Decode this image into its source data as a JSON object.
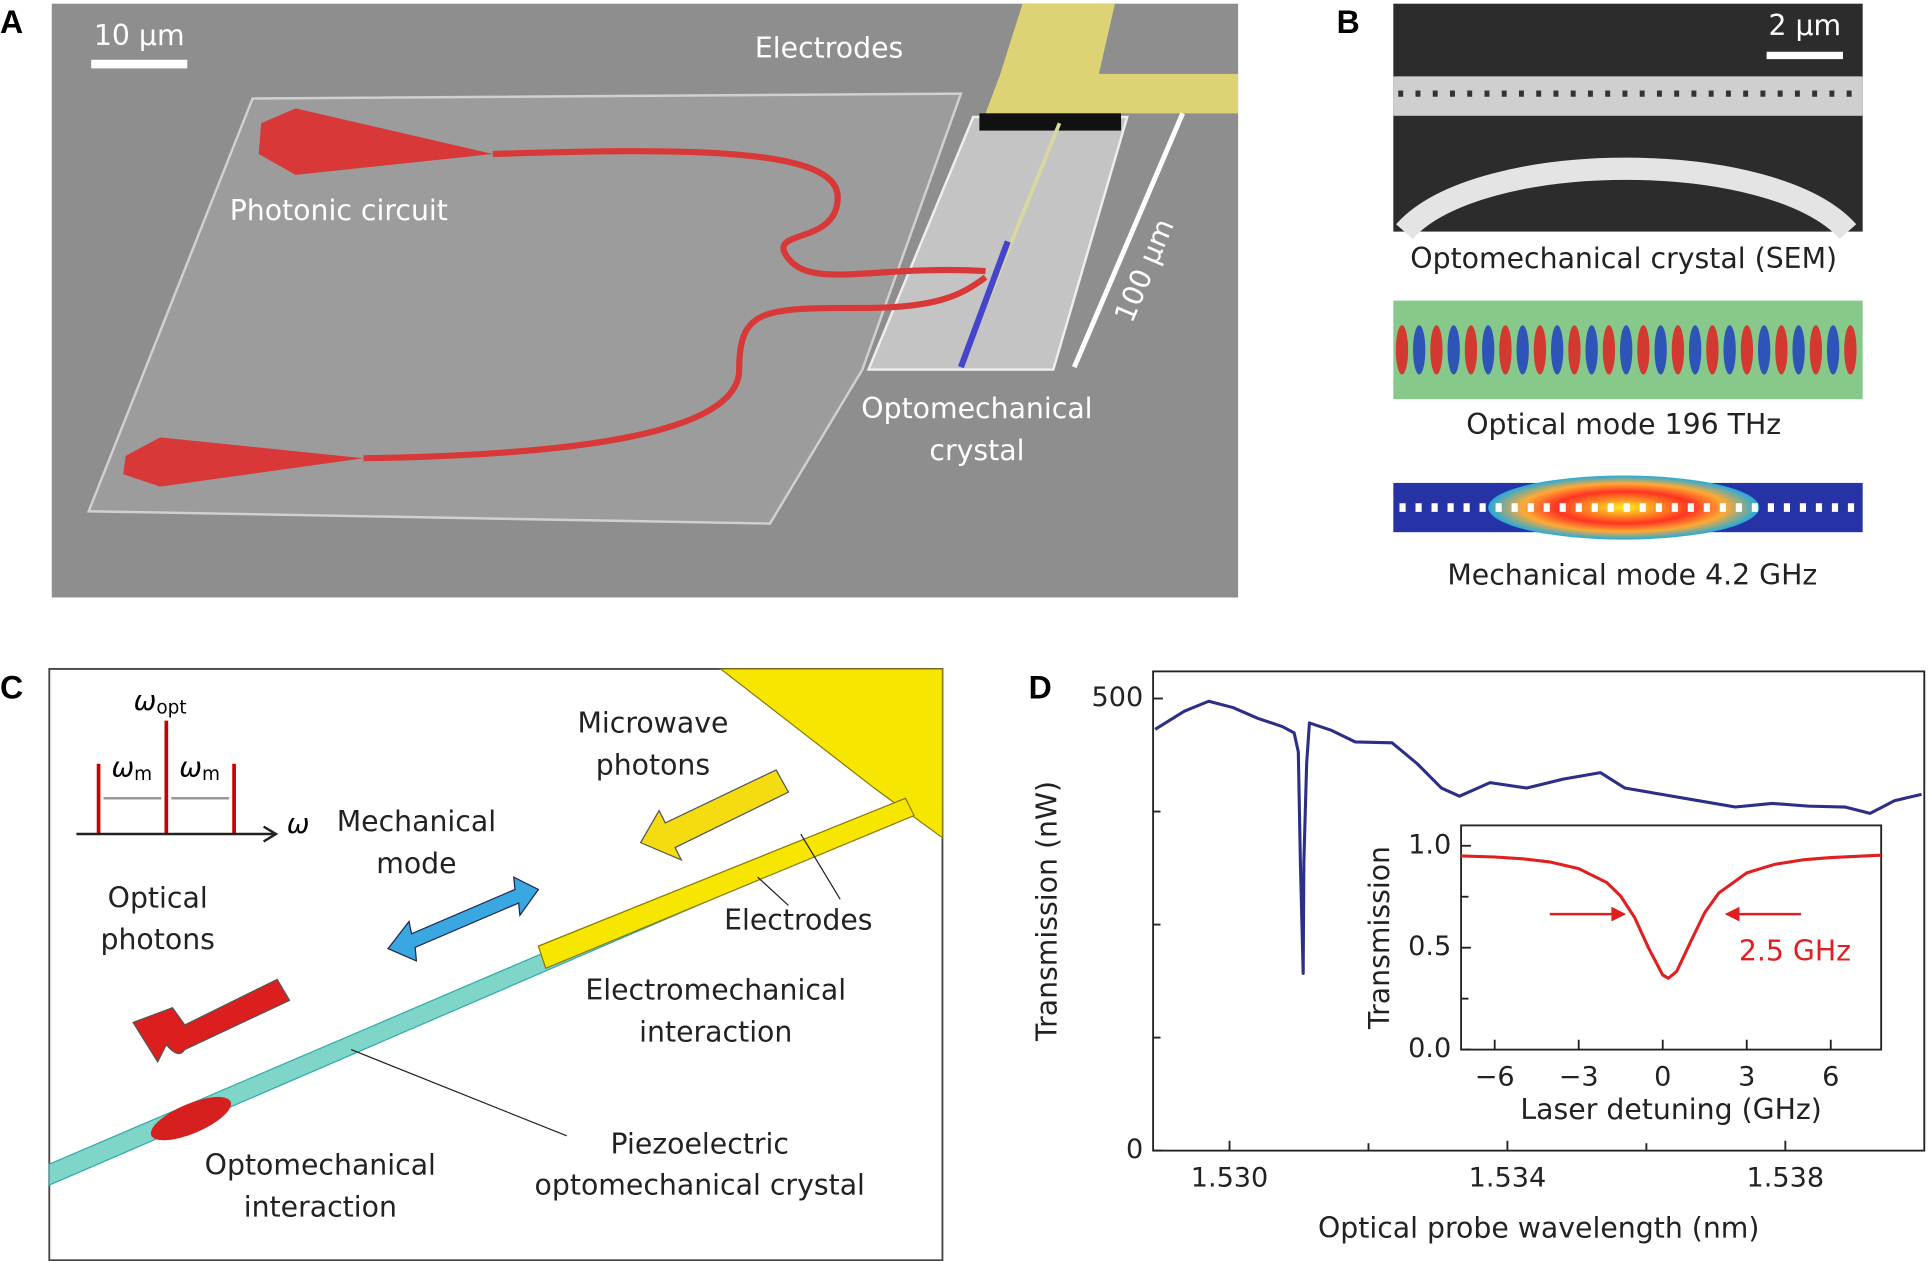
{
  "panel_a": {
    "label": "A",
    "scale_bar": "10 μm",
    "electrodes": "Electrodes",
    "photonic_circuit": "Photonic circuit",
    "length": "100 μm",
    "crystal": [
      "Optomechanical",
      "crystal"
    ]
  },
  "panel_b": {
    "label": "B",
    "scale_bar": "2 μm",
    "captions": [
      "Optomechanical crystal (SEM)",
      "Optical mode 196 THz",
      "Mechanical mode 4.2 GHz"
    ]
  },
  "panel_c": {
    "label": "C",
    "omega": "ω",
    "opt": "opt",
    "m": "m",
    "microwave": [
      "Microwave",
      "photons"
    ],
    "mechanical": [
      "Mechanical",
      "mode"
    ],
    "optical": [
      "Optical",
      "photons"
    ],
    "electrodes": "Electrodes",
    "electromechanical": [
      "Electromechanical",
      "interaction"
    ],
    "piezo": [
      "Piezoelectric",
      "optomechanical crystal"
    ],
    "optomechanical": [
      "Optomechanical",
      "interaction"
    ]
  },
  "panel_d": {
    "label": "D"
  },
  "chart_data": [
    {
      "type": "line",
      "x_label": "Optical probe wavelength (nm)",
      "y_label": "Transmission (nW)",
      "x": [
        1.52893,
        1.52935,
        1.5297,
        1.53005,
        1.53041,
        1.53076,
        1.53093,
        1.53099,
        1.53102,
        1.53106,
        1.53107,
        1.53111,
        1.53115,
        1.53146,
        1.53181,
        1.53234,
        1.5327,
        1.53305,
        1.53331,
        1.53375,
        1.53428,
        1.53481,
        1.53534,
        1.53569,
        1.53622,
        1.53675,
        1.53728,
        1.53781,
        1.53833,
        1.53886,
        1.53922,
        1.53957,
        1.53996
      ],
      "series": [
        {
          "color": "#2b2f86",
          "values": [
            466,
            486,
            497,
            490,
            478,
            469,
            462,
            441,
            319,
            196,
            319,
            428,
            473,
            465,
            452,
            451,
            428,
            401,
            392,
            407,
            401,
            411,
            418,
            401,
            394,
            387,
            380,
            384,
            381,
            380,
            373,
            387,
            394
          ]
        }
      ],
      "xlim": [
        1.5289,
        1.54
      ],
      "xticks": [
        {
          "value": 1.53,
          "label": "1.530"
        },
        {
          "value": 1.534,
          "label": "1.534"
        },
        {
          "value": 1.538,
          "label": "1.538"
        }
      ],
      "xminor_ticks": [
        1.532,
        1.536
      ],
      "ylim": [
        0,
        530
      ],
      "yticks": [
        0,
        500
      ],
      "yminor_ticks": [
        125,
        250,
        375
      ]
    },
    {
      "type": "line",
      "x_label": "Laser detuning (GHz)",
      "y_label": "Transmission",
      "annotation": "2.5 GHz",
      "x": [
        -7.2,
        -6,
        -5,
        -4,
        -3,
        -2,
        -1.5,
        -1,
        -0.5,
        0,
        0.2,
        0.5,
        1,
        1.5,
        2,
        3,
        4,
        5,
        6,
        7.8
      ],
      "series": [
        {
          "color": "#e02020",
          "values": [
            0.95,
            0.945,
            0.936,
            0.92,
            0.888,
            0.82,
            0.753,
            0.647,
            0.497,
            0.366,
            0.35,
            0.384,
            0.53,
            0.672,
            0.768,
            0.867,
            0.909,
            0.931,
            0.942,
            0.954
          ]
        }
      ],
      "xlim": [
        -7.2,
        7.8
      ],
      "xticks": [
        {
          "value": -6,
          "label": "−6"
        },
        {
          "value": -3,
          "label": "−3"
        },
        0,
        3,
        6
      ],
      "ylim": [
        0,
        1.1
      ],
      "yticks": [
        {
          "value": 0,
          "label": "0.0"
        },
        {
          "value": 0.5,
          "label": "0.5"
        },
        {
          "value": 1,
          "label": "1.0"
        }
      ],
      "yminor_ticks": [
        0.25,
        0.75
      ]
    }
  ]
}
